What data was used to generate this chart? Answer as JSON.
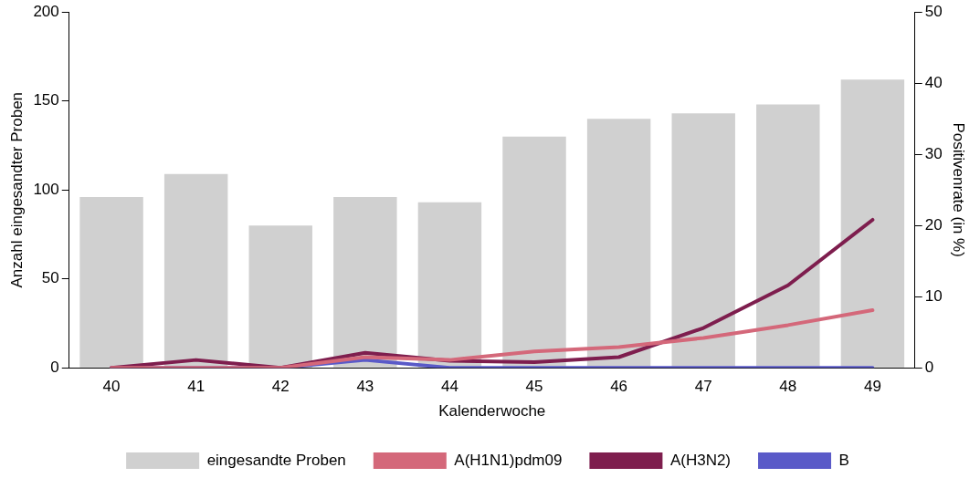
{
  "chart_data": {
    "type": "bar",
    "xlabel": "Kalenderwoche",
    "ylabel": "Anzahl eingesandter Proben",
    "y2label": "Positivenrate (in %)",
    "categories": [
      "40",
      "41",
      "42",
      "43",
      "44",
      "45",
      "46",
      "47",
      "48",
      "49"
    ],
    "series": [
      {
        "name": "eingesandte Proben",
        "color": "#d0d0d0",
        "values": [
          96,
          109,
          80,
          96,
          93,
          130,
          140,
          143,
          148,
          162
        ]
      },
      {
        "name": "A(H1N1)pdm09",
        "type": "line",
        "axis": "y2",
        "color": "#d4687a",
        "values": [
          0,
          0,
          0,
          1.5,
          1.1,
          2.3,
          2.9,
          4.2,
          6.0,
          8.1
        ]
      },
      {
        "name": "A(H3N2)",
        "type": "line",
        "axis": "y2",
        "color": "#7e1e4e",
        "values": [
          0,
          1.1,
          0,
          2.1,
          1.0,
          0.8,
          1.5,
          5.6,
          11.6,
          20.8
        ]
      },
      {
        "name": "B",
        "type": "line",
        "axis": "y2",
        "color": "#5a5ac8",
        "values": [
          0,
          0,
          0,
          1.1,
          0,
          0,
          0,
          0,
          0,
          0
        ]
      }
    ],
    "ylim": [
      0,
      200
    ],
    "yticks": [
      0,
      50,
      100,
      150,
      200
    ],
    "y2lim": [
      0,
      50
    ],
    "y2ticks": [
      0,
      10,
      20,
      30,
      40,
      50
    ],
    "grid": false,
    "legend": "bottom",
    "marker": "none",
    "line_style": "solid"
  }
}
